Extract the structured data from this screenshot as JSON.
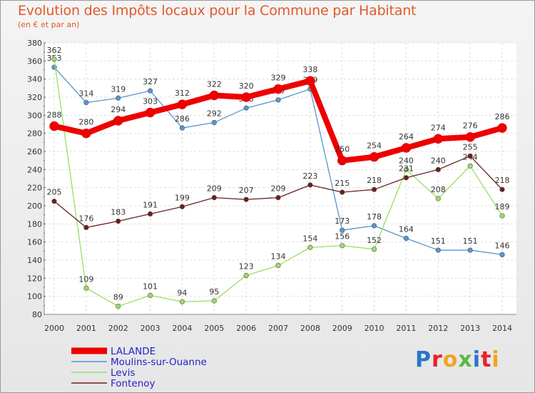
{
  "title": "Evolution des Impôts locaux pour la Commune par Habitant",
  "subtitle": "(en € et par an)",
  "brand": "Proxiti",
  "chart_data": {
    "type": "line",
    "title": "Evolution des Impôts locaux pour la Commune par Habitant",
    "subtitle": "(en € et par an)",
    "xlabel": "",
    "ylabel": "",
    "x": [
      "2000",
      "2001",
      "2002",
      "2003",
      "2004",
      "2005",
      "2006",
      "2007",
      "2008",
      "2009",
      "2010",
      "2011",
      "2012",
      "2013",
      "2014"
    ],
    "ylim": [
      80,
      380
    ],
    "yticks": [
      80,
      100,
      120,
      140,
      160,
      180,
      200,
      220,
      240,
      260,
      280,
      300,
      320,
      340,
      360,
      380
    ],
    "grid": true,
    "legend_position": "bottom-left",
    "series": [
      {
        "name": "LALANDE",
        "color": "#ee0000",
        "highlight": true,
        "values": [
          288,
          280,
          294,
          303,
          312,
          322,
          320,
          329,
          338,
          250,
          254,
          264,
          274,
          276,
          286
        ],
        "labels": [
          "288",
          "280",
          "294",
          "303",
          "312",
          "322",
          "320",
          "329",
          "338",
          "250",
          "254",
          "264",
          "274",
          "276",
          "286"
        ]
      },
      {
        "name": "Moulins-sur-Ouanne",
        "color": "#5596d2",
        "highlight": false,
        "values": [
          353,
          314,
          319,
          327,
          286,
          292,
          308,
          317,
          329,
          173,
          178,
          164,
          151,
          151,
          146
        ],
        "labels": [
          "353",
          "314",
          "319",
          "327",
          "286",
          "292",
          "308",
          "317",
          "329",
          "173",
          "178",
          "164",
          "151",
          "151",
          "146"
        ]
      },
      {
        "name": "Levis",
        "color": "#99dd66",
        "highlight": false,
        "values": [
          362,
          109,
          89,
          101,
          94,
          95,
          123,
          134,
          154,
          156,
          152,
          240,
          208,
          244,
          189
        ],
        "labels": [
          "362",
          "109",
          "89",
          "101",
          "94",
          "95",
          "123",
          "134",
          "154",
          "156",
          "152",
          "240",
          "208",
          "244",
          "189"
        ]
      },
      {
        "name": "Fontenoy",
        "color": "#6b1f1f",
        "highlight": false,
        "values": [
          205,
          176,
          183,
          191,
          199,
          209,
          207,
          209,
          223,
          215,
          218,
          231,
          240,
          255,
          218
        ],
        "labels": [
          "205",
          "176",
          "183",
          "191",
          "199",
          "209",
          "207",
          "209",
          "223",
          "215",
          "218",
          "231",
          "240",
          "255",
          "218"
        ]
      }
    ]
  },
  "logo_colors": [
    "#2a74c9",
    "#e8212b",
    "#f3a321",
    "#57b947",
    "#2a74c9",
    "#e8212b",
    "#f3a321"
  ]
}
